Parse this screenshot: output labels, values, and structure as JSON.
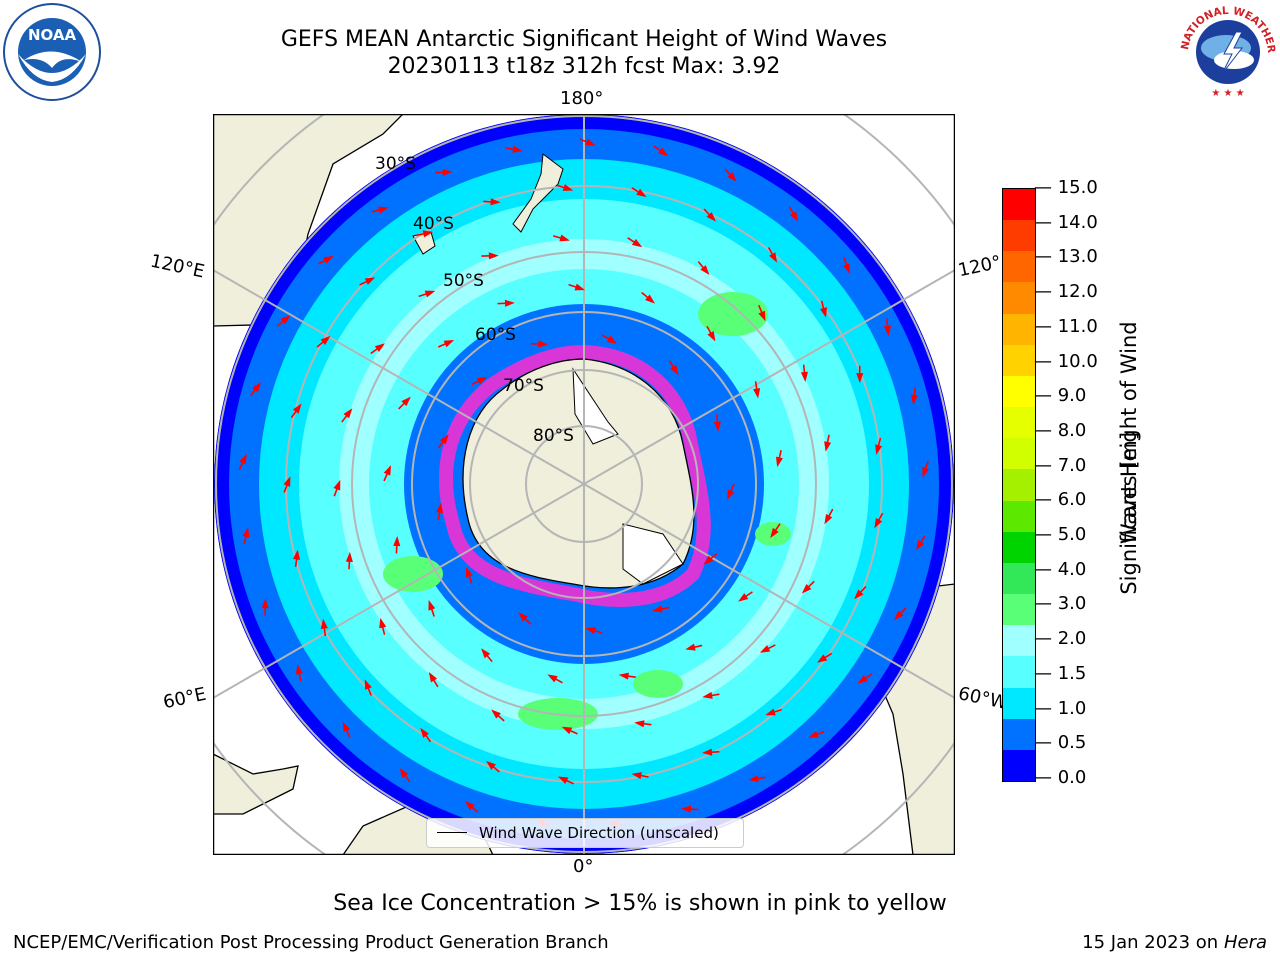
{
  "title": {
    "line1": "GEFS MEAN Antarctic Significant Height of Wind Waves",
    "line2": "20230113 t18z 312h fcst   Max: 3.92"
  },
  "logos": {
    "noaa_text": "NOAA",
    "nws_text": "NATIONAL WEATHER SERVICE"
  },
  "map": {
    "longitude_labels": {
      "top": "180°",
      "bottom": "0°",
      "upper_left": "120°E",
      "upper_right": "120°",
      "lower_left": "60°E",
      "lower_right": "60°W"
    },
    "latitude_labels": [
      "30°S",
      "40°S",
      "50°S",
      "60°S",
      "70°S",
      "80°S"
    ],
    "colors": {
      "ocean_low": "#0000ff",
      "ocean_mid": "#0072ff",
      "ocean_1": "#00e8ff",
      "ocean_2": "#a0ffff",
      "land": "#efefdc",
      "grid": "#b5b5b5",
      "arrow": "#ff0000"
    }
  },
  "legend": {
    "label": "Wind Wave Direction (unscaled)"
  },
  "colorbar": {
    "label": "Significant Height of Wind Waves [m]",
    "label_line1": "Significant Height of Wind",
    "label_line2": "Waves [m]",
    "ticks": [
      "15.0",
      "14.0",
      "13.0",
      "12.0",
      "11.0",
      "10.0",
      "9.0",
      "8.0",
      "7.0",
      "6.0",
      "5.0",
      "4.0",
      "3.0",
      "2.0",
      "1.5",
      "1.0",
      "0.5",
      "0.0"
    ],
    "colors_bottom_to_top": [
      "#0000ff",
      "#0072ff",
      "#00e8ff",
      "#58ffff",
      "#a0ffff",
      "#5aff78",
      "#33e858",
      "#00d400",
      "#5de800",
      "#a5f000",
      "#d2ff00",
      "#e6ff00",
      "#ffff00",
      "#ffd200",
      "#ffb400",
      "#ff8a00",
      "#ff6600",
      "#ff3c00",
      "#ff0000"
    ]
  },
  "footer": {
    "note": "Sea Ice Concentration > 15% is shown in pink to yellow",
    "left": "NCEP/EMC/Verification Post Processing Product Generation Branch",
    "right_date": "15 Jan 2023 on ",
    "right_host": "Hera"
  }
}
